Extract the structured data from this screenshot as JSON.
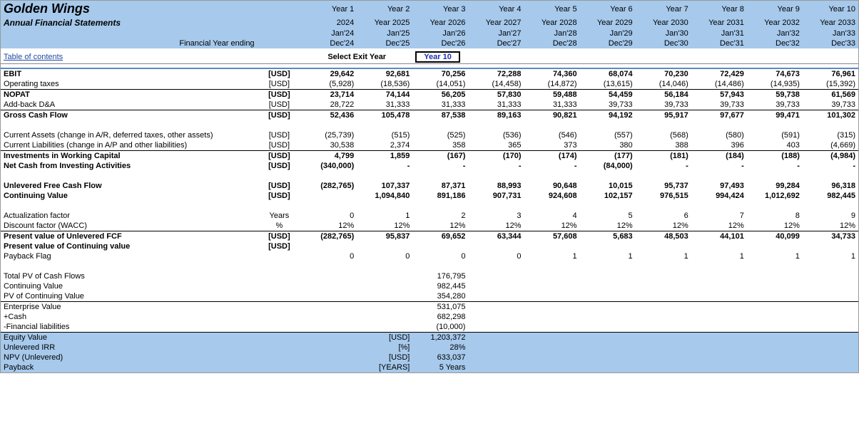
{
  "colors": {
    "header_band": "#a6c9ec",
    "link": "#1f49a3",
    "exit_box_text": "#1f2fb3",
    "separator_blue": "#5a8ac6"
  },
  "header": {
    "title": "Golden Wings",
    "subtitle": "Annual Financial Statements",
    "fye_label": "Financial Year ending",
    "year_labels": [
      "Year 1",
      "Year 2",
      "Year 3",
      "Year 4",
      "Year 5",
      "Year 6",
      "Year 7",
      "Year 8",
      "Year 9",
      "Year 10"
    ],
    "year_values": [
      "2024",
      "Year 2025",
      "Year 2026",
      "Year 2027",
      "Year 2028",
      "Year 2029",
      "Year 2030",
      "Year 2031",
      "Year 2032",
      "Year 2033"
    ],
    "start_months": [
      "Jan'24",
      "Jan'25",
      "Jan'26",
      "Jan'27",
      "Jan'28",
      "Jan'29",
      "Jan'30",
      "Jan'31",
      "Jan'32",
      "Jan'33"
    ],
    "end_months": [
      "Dec'24",
      "Dec'25",
      "Dec'26",
      "Dec'27",
      "Dec'28",
      "Dec'29",
      "Dec'30",
      "Dec'31",
      "Dec'32",
      "Dec'33"
    ]
  },
  "toc": {
    "link_text": "Table of contents",
    "select_exit_label": "Select Exit Year",
    "exit_value": "Year 10"
  },
  "rows": {
    "ebit": {
      "label": "EBIT",
      "unit": "[USD]",
      "vals": [
        "29,642",
        "92,681",
        "70,256",
        "72,288",
        "74,360",
        "68,074",
        "70,230",
        "72,429",
        "74,673",
        "76,961"
      ],
      "bold": true
    },
    "optax": {
      "label": "Operating taxes",
      "unit": "[USD]",
      "vals": [
        "(5,928)",
        "(18,536)",
        "(14,051)",
        "(14,458)",
        "(14,872)",
        "(13,615)",
        "(14,046)",
        "(14,486)",
        "(14,935)",
        "(15,392)"
      ]
    },
    "nopat": {
      "label": "NOPAT",
      "unit": "[USD]",
      "vals": [
        "23,714",
        "74,144",
        "56,205",
        "57,830",
        "59,488",
        "54,459",
        "56,184",
        "57,943",
        "59,738",
        "61,569"
      ],
      "bold": true
    },
    "da": {
      "label": "Add-back D&A",
      "unit": "[USD]",
      "vals": [
        "28,722",
        "31,333",
        "31,333",
        "31,333",
        "31,333",
        "39,733",
        "39,733",
        "39,733",
        "39,733",
        "39,733"
      ]
    },
    "gcf": {
      "label": "Gross Cash Flow",
      "unit": "[USD]",
      "vals": [
        "52,436",
        "105,478",
        "87,538",
        "89,163",
        "90,821",
        "94,192",
        "95,917",
        "97,677",
        "99,471",
        "101,302"
      ],
      "bold": true
    },
    "ca": {
      "label": "Current Assets (change in A/R, deferred taxes, other assets)",
      "unit": "[USD]",
      "vals": [
        "(25,739)",
        "(515)",
        "(525)",
        "(536)",
        "(546)",
        "(557)",
        "(568)",
        "(580)",
        "(591)",
        "(315)"
      ]
    },
    "cl": {
      "label": "Current Liabilities (change in A/P and other liabilities)",
      "unit": "[USD]",
      "vals": [
        "30,538",
        "2,374",
        "358",
        "365",
        "373",
        "380",
        "388",
        "396",
        "403",
        "(4,669)"
      ]
    },
    "iwc": {
      "label": "Investments in Working Capital",
      "unit": "[USD]",
      "vals": [
        "4,799",
        "1,859",
        "(167)",
        "(170)",
        "(174)",
        "(177)",
        "(181)",
        "(184)",
        "(188)",
        "(4,984)"
      ],
      "bold": true
    },
    "nci": {
      "label": "Net Cash from Investing Activities",
      "unit": "[USD]",
      "vals": [
        "(340,000)",
        "-",
        "-",
        "-",
        "-",
        "(84,000)",
        "-",
        "-",
        "-",
        "-"
      ],
      "bold": true
    },
    "ufcf": {
      "label": "Unlevered Free Cash Flow",
      "unit": "[USD]",
      "vals": [
        "(282,765)",
        "107,337",
        "87,371",
        "88,993",
        "90,648",
        "10,015",
        "95,737",
        "97,493",
        "99,284",
        "96,318"
      ],
      "bold": true
    },
    "cv": {
      "label": "Continuing Value",
      "unit": "[USD]",
      "vals": [
        "",
        "1,094,840",
        "891,186",
        "907,731",
        "924,608",
        "102,157",
        "976,515",
        "994,424",
        "1,012,692",
        "982,445"
      ],
      "bold": true
    },
    "af": {
      "label": "Actualization factor",
      "unit": "Years",
      "vals": [
        "0",
        "1",
        "2",
        "3",
        "4",
        "5",
        "6",
        "7",
        "8",
        "9"
      ]
    },
    "df": {
      "label": "Discount factor (WACC)",
      "unit": "%",
      "vals": [
        "12%",
        "12%",
        "12%",
        "12%",
        "12%",
        "12%",
        "12%",
        "12%",
        "12%",
        "12%"
      ]
    },
    "pvufcf": {
      "label": "Present value of Unlevered FCF",
      "unit": "[USD]",
      "vals": [
        "(282,765)",
        "95,837",
        "69,652",
        "63,344",
        "57,608",
        "5,683",
        "48,503",
        "44,101",
        "40,099",
        "34,733"
      ],
      "bold": true
    },
    "pvcv": {
      "label": "Present value of Continuing  value",
      "unit": "[USD]",
      "vals": [
        "",
        "",
        "",
        "",
        "",
        "",
        "",
        "",
        "",
        ""
      ],
      "bold": true
    },
    "pf": {
      "label": "Payback Flag",
      "unit": "",
      "vals": [
        "0",
        "0",
        "0",
        "0",
        "1",
        "1",
        "1",
        "1",
        "1",
        "1"
      ]
    }
  },
  "summary": {
    "lines": [
      {
        "label": "Total PV of Cash Flows",
        "unit": "",
        "value": "176,795",
        "fill": false,
        "bt": false,
        "bb": false
      },
      {
        "label": "Continuing Value",
        "unit": "",
        "value": "982,445",
        "fill": false,
        "bt": false,
        "bb": false
      },
      {
        "label": "PV of Continuing Value",
        "unit": "",
        "value": "354,280",
        "fill": false,
        "bt": false,
        "bb": true
      },
      {
        "label": "Enterprise Value",
        "unit": "",
        "value": "531,075",
        "fill": false,
        "bt": false,
        "bb": false
      },
      {
        "label": "+Cash",
        "unit": "",
        "value": "682,298",
        "fill": false,
        "bt": false,
        "bb": false
      },
      {
        "label": "-Financial liabilities",
        "unit": "",
        "value": "(10,000)",
        "fill": false,
        "bt": false,
        "bb": true
      },
      {
        "label": "Equity Value",
        "unit": "[USD]",
        "value": "1,203,372",
        "fill": true,
        "bt": false,
        "bb": false
      },
      {
        "label": "Unlevered IRR",
        "unit": "[%]",
        "value": "28%",
        "fill": true,
        "bt": false,
        "bb": false
      },
      {
        "label": "NPV (Unlevered)",
        "unit": "[USD]",
        "value": "633,037",
        "fill": true,
        "bt": false,
        "bb": false
      },
      {
        "label": "Payback",
        "unit": "[YEARS]",
        "value": "5 Years",
        "fill": true,
        "bt": false,
        "bb": false
      }
    ]
  }
}
